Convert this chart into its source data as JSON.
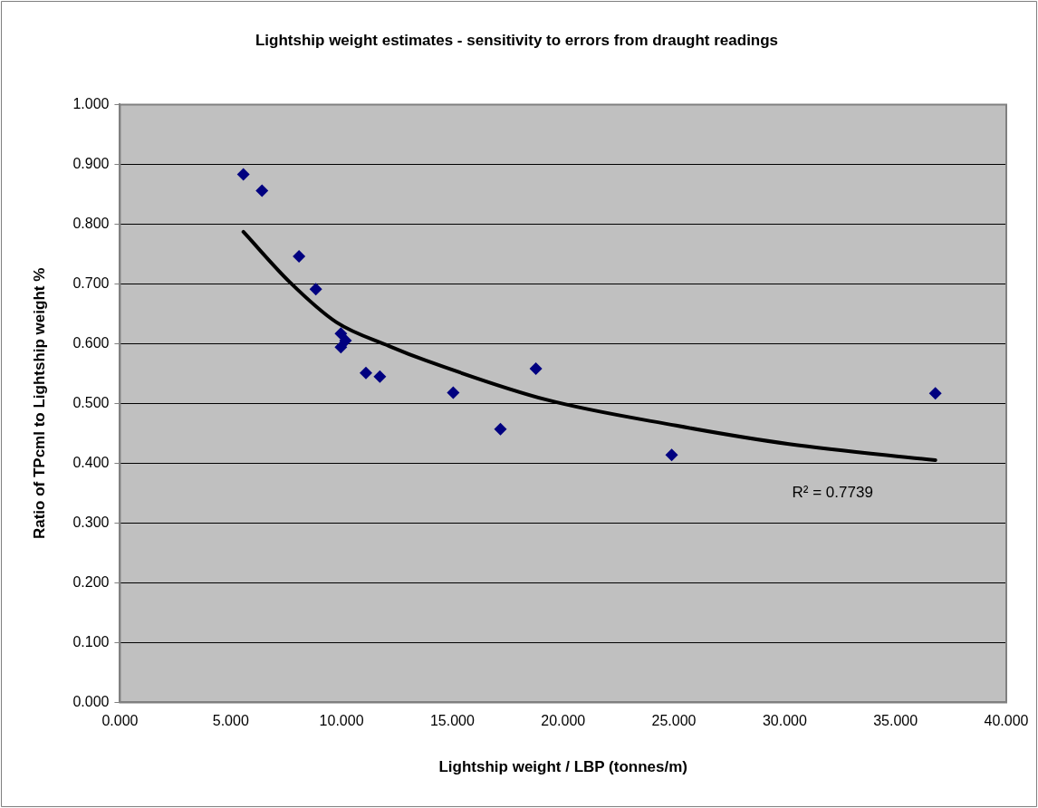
{
  "chart_data": {
    "type": "scatter",
    "title": "Lightship weight estimates - sensitivity to errors from draught readings",
    "xlabel": "Lightship weight / LBP (tonnes/m)",
    "ylabel": "Ratio of TPcml to Lightship weight %",
    "xlim": [
      0,
      40
    ],
    "ylim": [
      0,
      1
    ],
    "xticks": [
      {
        "value": 0,
        "label": "0.000"
      },
      {
        "value": 5,
        "label": "5.000"
      },
      {
        "value": 10,
        "label": "10.000"
      },
      {
        "value": 15,
        "label": "15.000"
      },
      {
        "value": 20,
        "label": "20.000"
      },
      {
        "value": 25,
        "label": "25.000"
      },
      {
        "value": 30,
        "label": "30.000"
      },
      {
        "value": 35,
        "label": "35.000"
      },
      {
        "value": 40,
        "label": "40.000"
      }
    ],
    "yticks": [
      {
        "value": 0,
        "label": "0.000"
      },
      {
        "value": 0.1,
        "label": "0.100"
      },
      {
        "value": 0.2,
        "label": "0.200"
      },
      {
        "value": 0.3,
        "label": "0.300"
      },
      {
        "value": 0.4,
        "label": "0.400"
      },
      {
        "value": 0.5,
        "label": "0.500"
      },
      {
        "value": 0.6,
        "label": "0.600"
      },
      {
        "value": 0.7,
        "label": "0.700"
      },
      {
        "value": 0.8,
        "label": "0.800"
      },
      {
        "value": 0.9,
        "label": "0.900"
      },
      {
        "value": 1,
        "label": "1.000"
      }
    ],
    "grid": "y",
    "legend": false,
    "marker": "diamond",
    "series": [
      {
        "type": "scatter",
        "color": "#000080",
        "x": [
          5.57,
          6.41,
          8.08,
          8.84,
          9.97,
          10.18,
          9.97,
          11.1,
          11.73,
          15.04,
          17.17,
          18.77,
          24.9,
          36.8
        ],
        "values": [
          0.883,
          0.856,
          0.746,
          0.691,
          0.617,
          0.605,
          0.594,
          0.551,
          0.545,
          0.518,
          0.457,
          0.558,
          0.414,
          0.517
        ]
      },
      {
        "type": "line",
        "color": "#000000",
        "marker": "none",
        "line_style": "solid",
        "x": [
          5.57,
          7.66,
          9.76,
          12.15,
          13.8,
          19.27,
          25.1,
          30.2,
          36.8
        ],
        "values": [
          0.787,
          0.703,
          0.636,
          0.596,
          0.572,
          0.506,
          0.463,
          0.432,
          0.405
        ]
      }
    ],
    "annotations": [
      "R² = 0.7739"
    ]
  }
}
